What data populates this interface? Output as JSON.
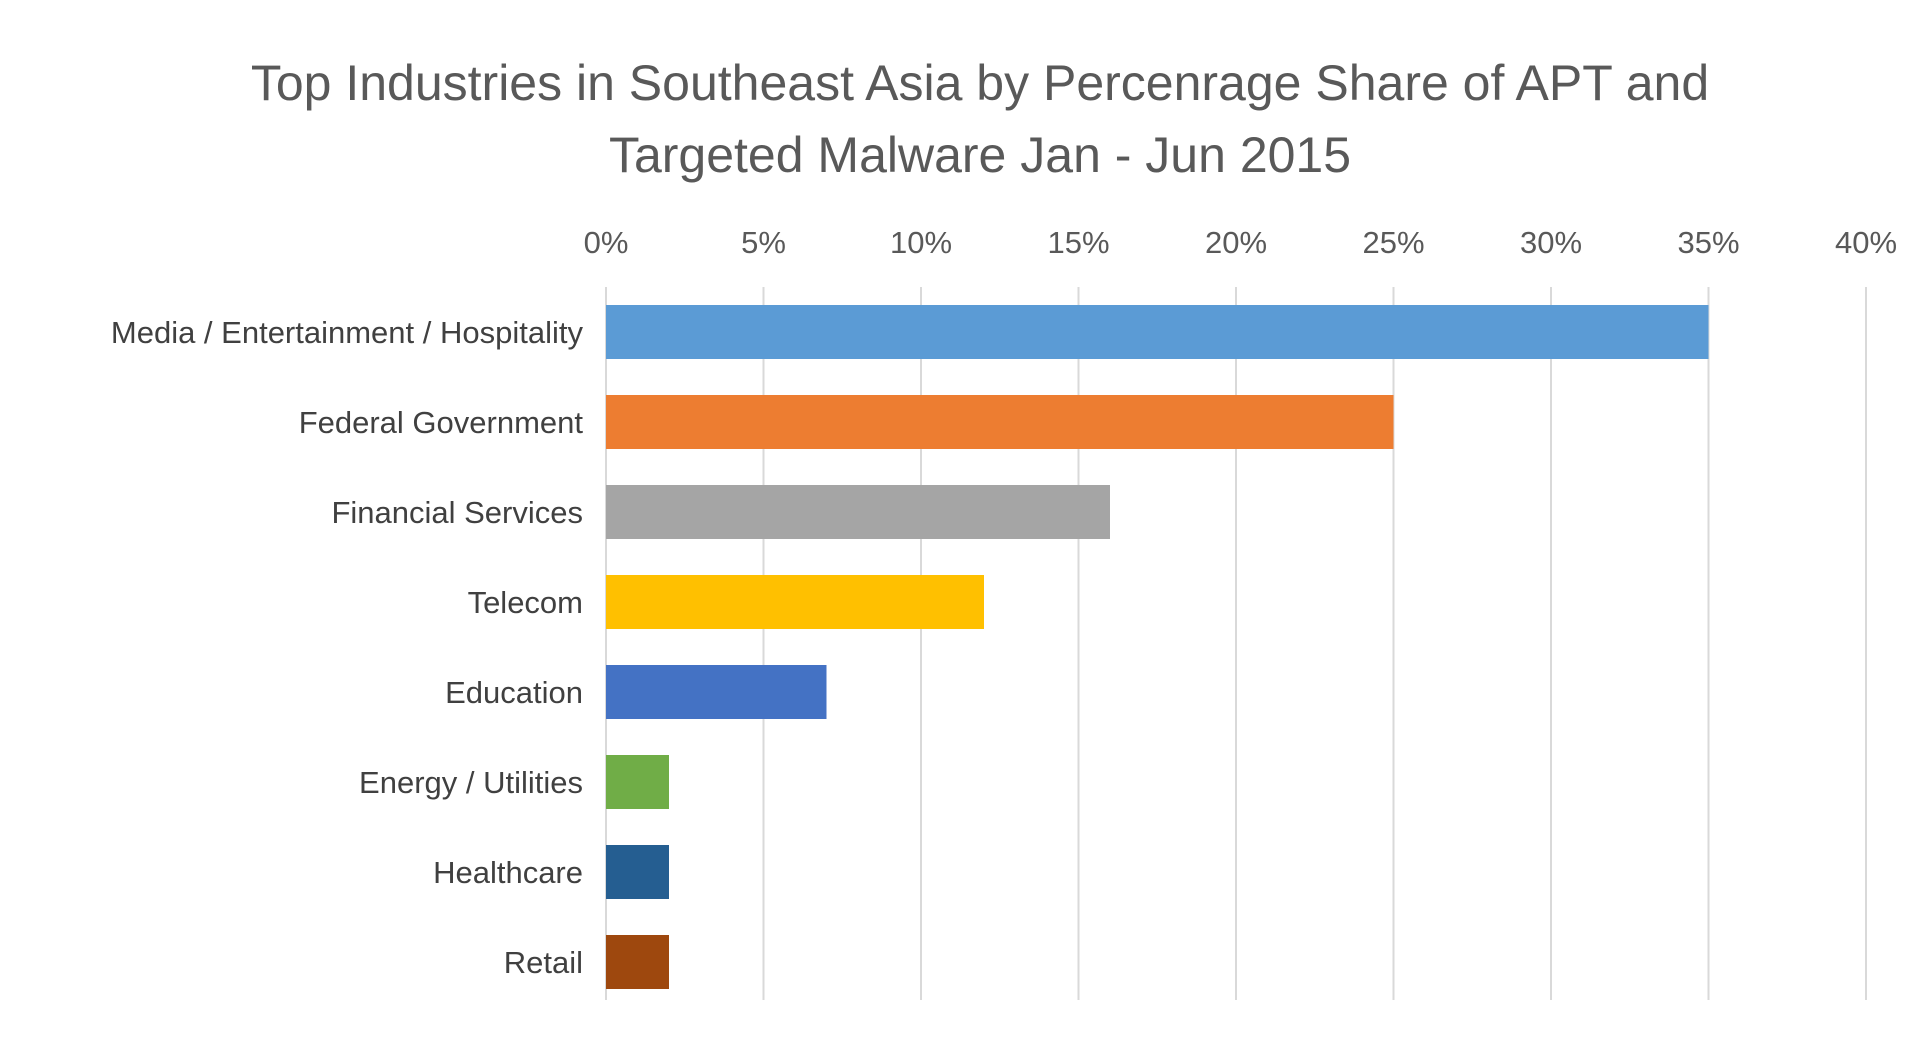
{
  "chart_data": {
    "type": "bar",
    "orientation": "horizontal",
    "title": "Top Industries in Southeast Asia by Percenrage Share of APT and Targeted Malware Jan - Jun 2015",
    "title_lines": [
      "Top Industries in Southeast Asia by Percenrage Share of APT and",
      "Targeted Malware Jan - Jun 2015"
    ],
    "categories": [
      "Media / Entertainment / Hospitality",
      "Federal Government",
      "Financial Services",
      "Telecom",
      "Education",
      "Energy / Utilities",
      "Healthcare",
      "Retail"
    ],
    "values": [
      35,
      25,
      16,
      12,
      7,
      2,
      2,
      2
    ],
    "colors": [
      "#5b9bd5",
      "#ed7d31",
      "#a5a5a5",
      "#ffc000",
      "#4472c4",
      "#70ad47",
      "#255e91",
      "#9e480e"
    ],
    "xlabel": "",
    "ylabel": "",
    "xlim": [
      0,
      40
    ],
    "x_ticks": [
      0,
      5,
      10,
      15,
      20,
      25,
      30,
      35,
      40
    ],
    "x_tick_labels": [
      "0%",
      "5%",
      "10%",
      "15%",
      "20%",
      "25%",
      "30%",
      "35%",
      "40%"
    ],
    "x_axis_position": "top",
    "grid": true,
    "legend": false
  }
}
